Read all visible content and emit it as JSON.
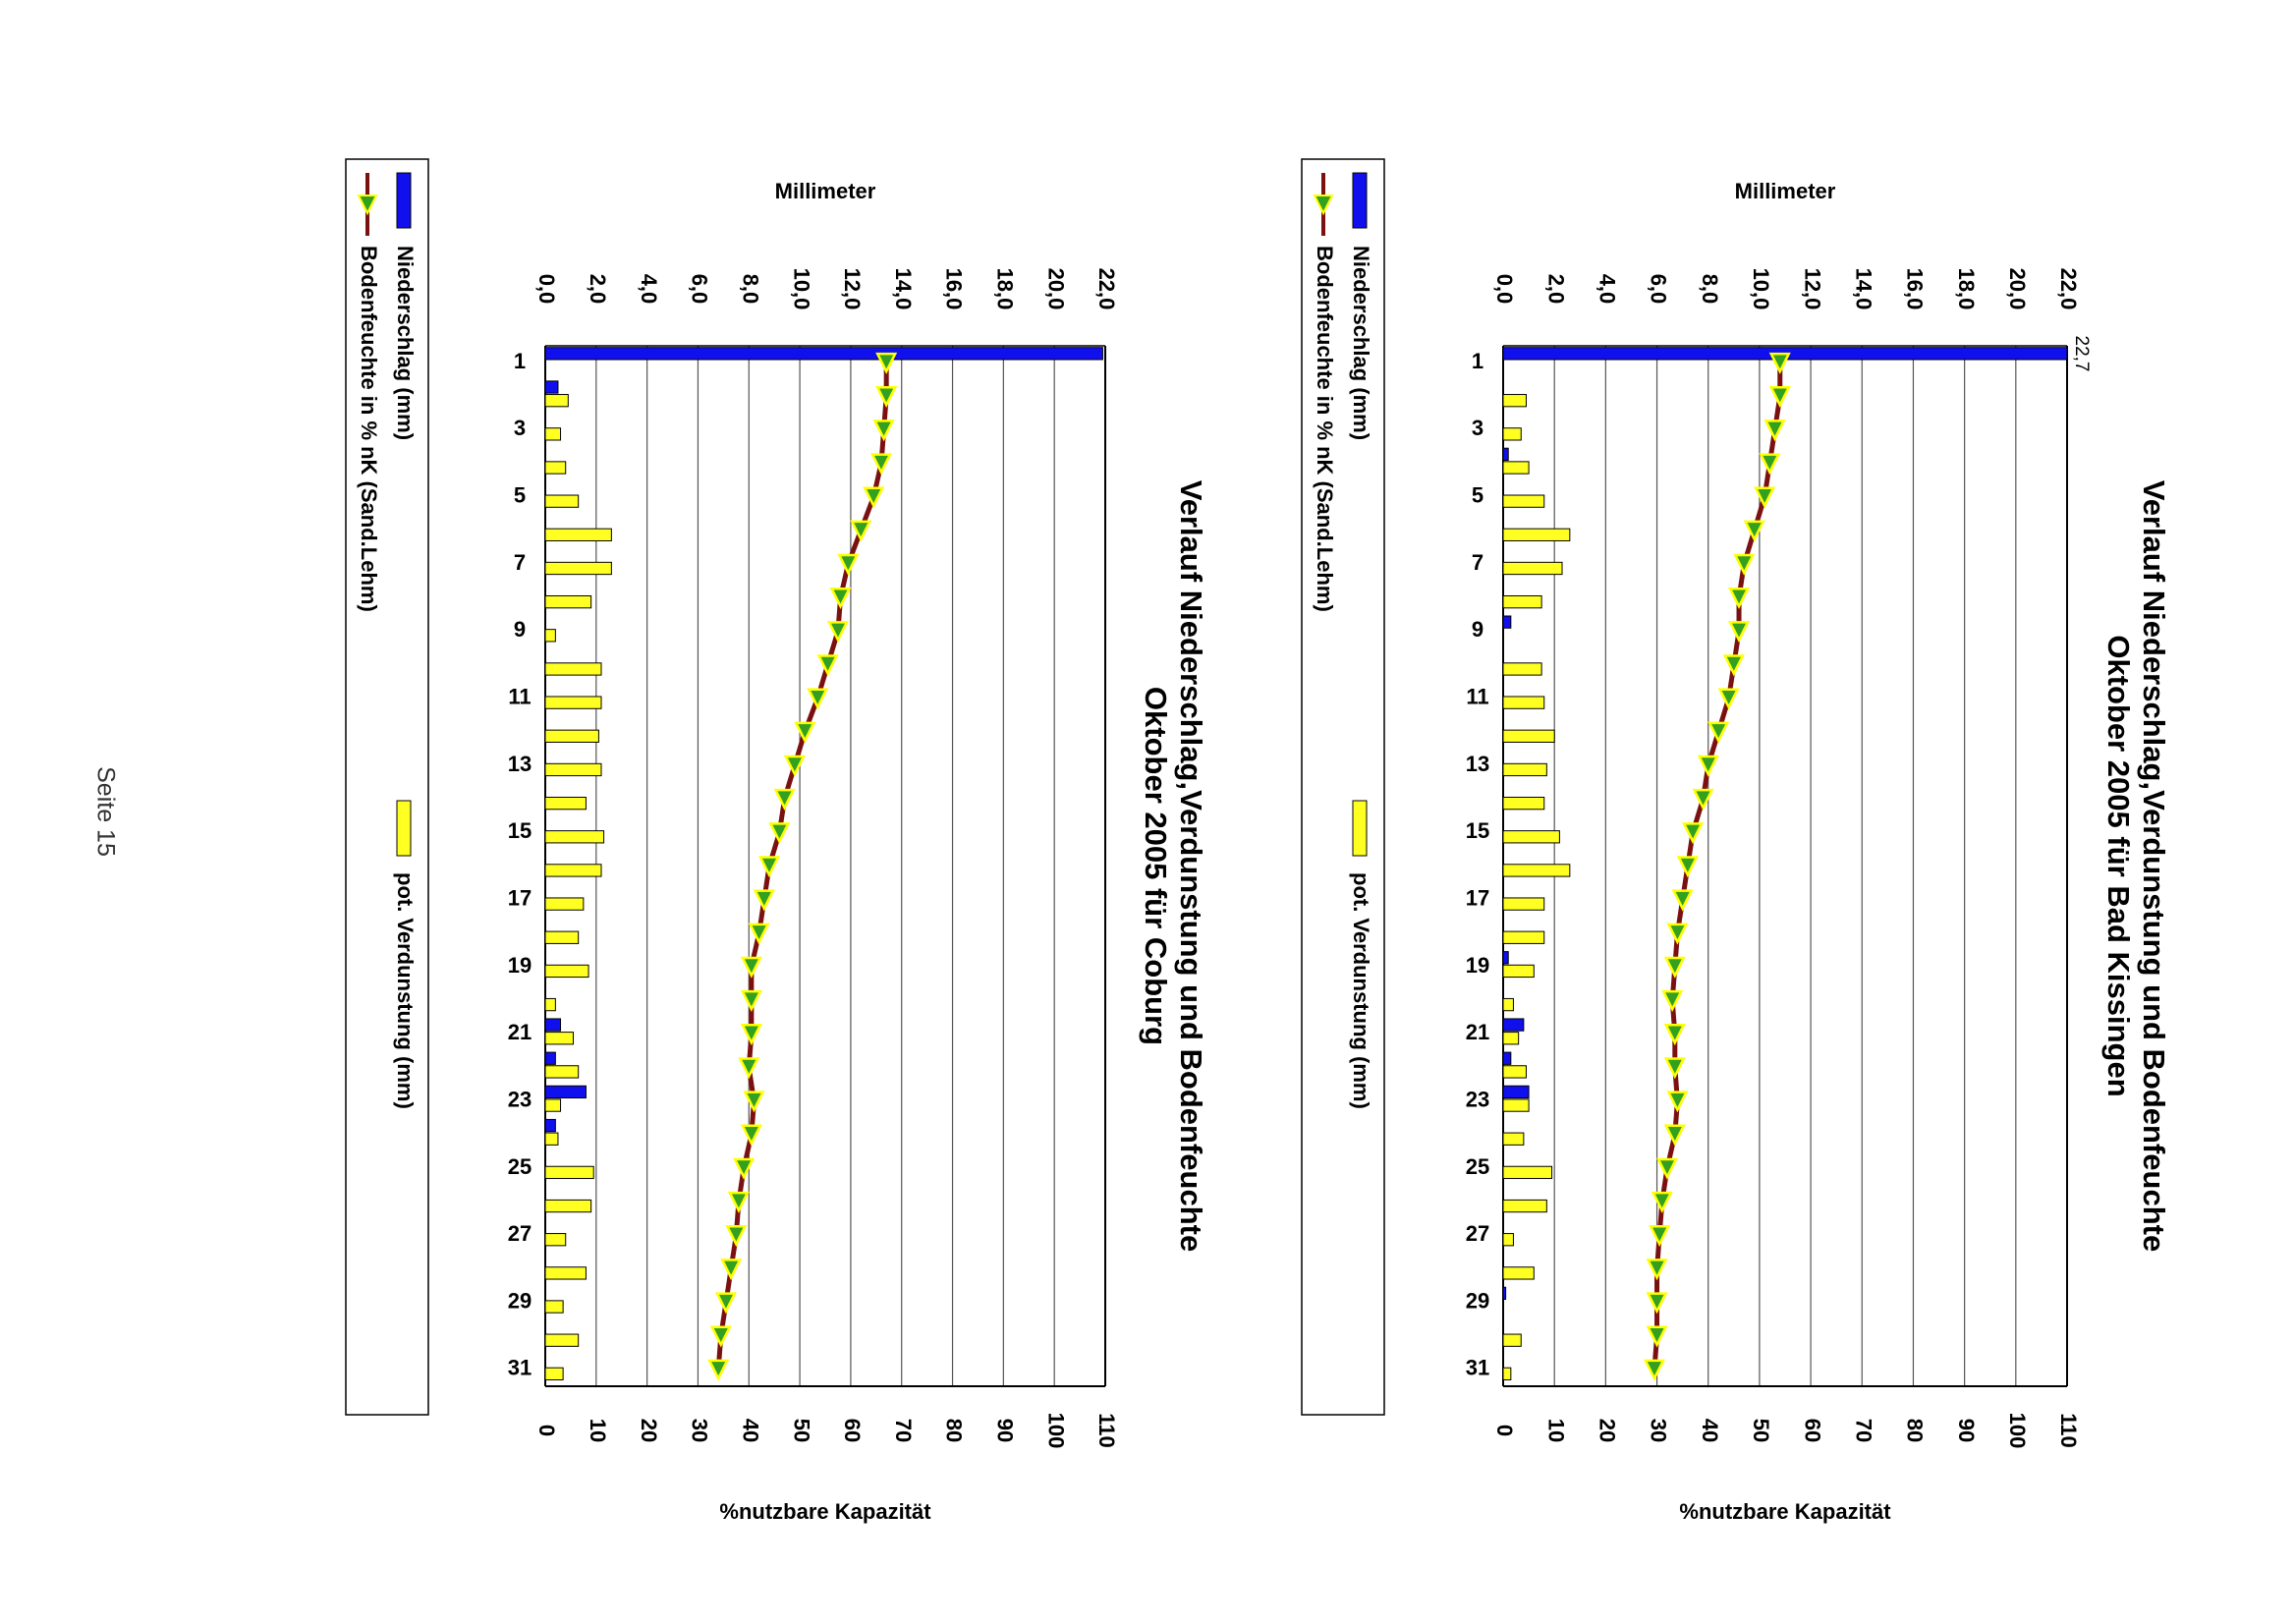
{
  "page_label": "Seite 15",
  "colors": {
    "precip_fill": "#1010ee",
    "evap_fill": "#ffff22",
    "line": "#7a1010",
    "marker_fill": "#33a020",
    "marker_stroke": "#ffff00",
    "gridline": "#555555"
  },
  "chart_data": [
    {
      "type": "bar",
      "orientation": "rotated-90",
      "title": "Verlauf Niederschlag,Verdunstung und Bodenfeuchte",
      "subtitle": "Oktober  2005 für Bad Kissingen",
      "left_axis_label": "Millimeter",
      "right_axis_label": "%nutzbare Kapazität",
      "left_axis_ticks": [
        "0,0",
        "2,0",
        "4,0",
        "6,0",
        "8,0",
        "10,0",
        "12,0",
        "14,0",
        "16,0",
        "18,0",
        "20,0",
        "22,0"
      ],
      "right_axis_ticks": [
        "0",
        "10",
        "20",
        "30",
        "40",
        "50",
        "60",
        "70",
        "80",
        "90",
        "100",
        "110"
      ],
      "category_ticks": [
        "1",
        "3",
        "5",
        "7",
        "9",
        "11",
        "13",
        "15",
        "17",
        "19",
        "21",
        "23",
        "25",
        "27",
        "29",
        "31"
      ],
      "ylim_mm": [
        0,
        22
      ],
      "ylim_pct": [
        0,
        110
      ],
      "overflow_label": "22,7",
      "days": [
        1,
        2,
        3,
        4,
        5,
        6,
        7,
        8,
        9,
        10,
        11,
        12,
        13,
        14,
        15,
        16,
        17,
        18,
        19,
        20,
        21,
        22,
        23,
        24,
        25,
        26,
        27,
        28,
        29,
        30,
        31
      ],
      "series": [
        {
          "name": "Niederschlag (mm)",
          "kind": "bar",
          "values": [
            22.7,
            0,
            0,
            0.2,
            0,
            0,
            0,
            0,
            0.3,
            0,
            0,
            0,
            0,
            0,
            0,
            0,
            0,
            0,
            0.2,
            0,
            0.8,
            0.3,
            1.0,
            0,
            0,
            0,
            0,
            0,
            0.1,
            0,
            0
          ]
        },
        {
          "name": "pot. Verdunstung (mm)",
          "kind": "bar",
          "values": [
            0,
            0.9,
            0.7,
            1.0,
            1.6,
            2.6,
            2.3,
            1.5,
            0,
            1.5,
            1.6,
            2.0,
            1.7,
            1.6,
            2.2,
            2.6,
            1.6,
            1.6,
            1.2,
            0.4,
            0.6,
            0.9,
            1.0,
            0.8,
            1.9,
            1.7,
            0.4,
            1.2,
            0,
            0.7,
            0.3
          ]
        },
        {
          "name": "Bodenfeuchte in % nK (Sand.Lehm)",
          "kind": "line",
          "values": [
            54,
            54,
            53,
            52,
            51,
            49,
            47,
            46,
            46,
            45,
            44,
            42,
            40,
            39,
            37,
            36,
            35,
            34,
            33.5,
            33,
            33.5,
            33.5,
            34,
            33.5,
            32,
            31,
            30.5,
            30,
            30,
            30,
            29.5
          ]
        }
      ]
    },
    {
      "type": "bar",
      "orientation": "rotated-90",
      "title": "Verlauf Niederschlag,Verdunstung und Bodenfeuchte",
      "subtitle": "Oktober 2005 für Coburg",
      "left_axis_label": "Millimeter",
      "right_axis_label": "%nutzbare Kapazität",
      "left_axis_ticks": [
        "0,0",
        "2,0",
        "4,0",
        "6,0",
        "8,0",
        "10,0",
        "12,0",
        "14,0",
        "16,0",
        "18,0",
        "20,0",
        "22,0"
      ],
      "right_axis_ticks": [
        "0",
        "10",
        "20",
        "30",
        "40",
        "50",
        "60",
        "70",
        "80",
        "90",
        "100",
        "110"
      ],
      "category_ticks": [
        "1",
        "3",
        "5",
        "7",
        "9",
        "11",
        "13",
        "15",
        "17",
        "19",
        "21",
        "23",
        "25",
        "27",
        "29",
        "31"
      ],
      "ylim_mm": [
        0,
        22
      ],
      "ylim_pct": [
        0,
        110
      ],
      "overflow_label": "",
      "days": [
        1,
        2,
        3,
        4,
        5,
        6,
        7,
        8,
        9,
        10,
        11,
        12,
        13,
        14,
        15,
        16,
        17,
        18,
        19,
        20,
        21,
        22,
        23,
        24,
        25,
        26,
        27,
        28,
        29,
        30,
        31
      ],
      "series": [
        {
          "name": "Niederschlag (mm)",
          "kind": "bar",
          "values": [
            21.9,
            0.5,
            0,
            0,
            0,
            0,
            0,
            0,
            0,
            0,
            0,
            0,
            0,
            0,
            0,
            0,
            0,
            0,
            0,
            0,
            0.6,
            0.4,
            1.6,
            0.4,
            0,
            0,
            0,
            0,
            0,
            0,
            0
          ]
        },
        {
          "name": "pot. Verdunstung (mm)",
          "kind": "bar",
          "values": [
            0,
            0.9,
            0.6,
            0.8,
            1.3,
            2.6,
            2.6,
            1.8,
            0.4,
            2.2,
            2.2,
            2.1,
            2.2,
            1.6,
            2.3,
            2.2,
            1.5,
            1.3,
            1.7,
            0.4,
            1.1,
            1.3,
            0.6,
            0.5,
            1.9,
            1.8,
            0.8,
            1.6,
            0.7,
            1.3,
            0.7
          ]
        },
        {
          "name": "Bodenfeuchte in % nK (Sand.Lehm)",
          "kind": "line",
          "values": [
            67,
            67,
            66.5,
            66,
            64.5,
            62,
            59.5,
            58,
            57.5,
            55.5,
            53.5,
            51,
            49,
            47,
            46,
            44,
            43,
            42,
            40.5,
            40.5,
            40.5,
            40,
            41,
            40.5,
            39,
            38,
            37.5,
            36.5,
            35.5,
            34.5,
            34
          ]
        }
      ]
    }
  ]
}
